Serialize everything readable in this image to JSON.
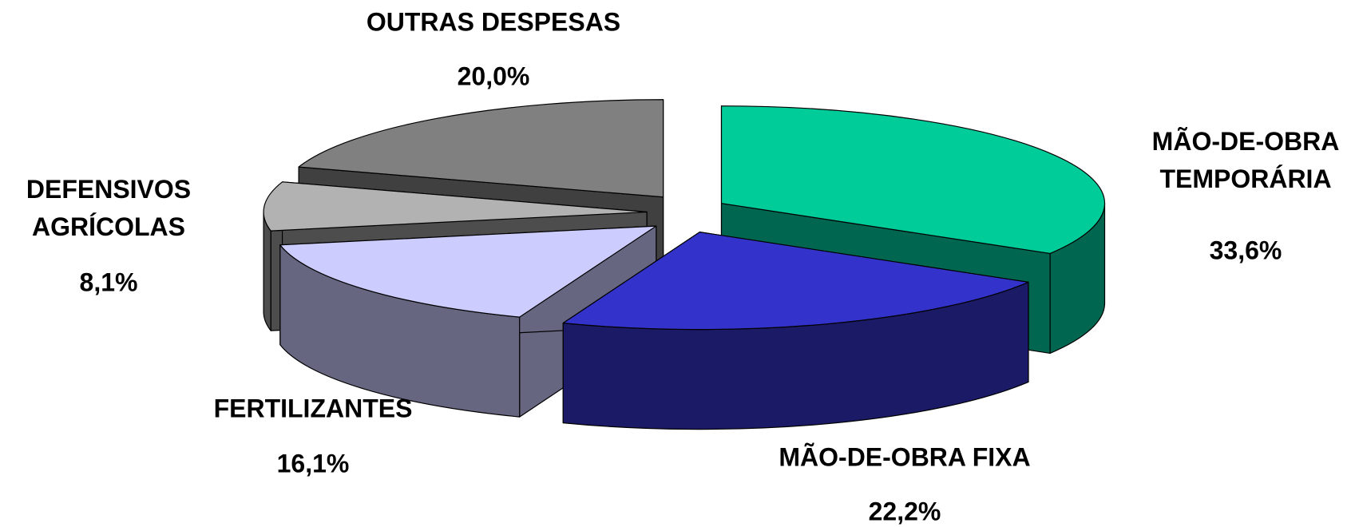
{
  "chart_data": {
    "type": "pie",
    "categories": [
      "MÃO-DE-OBRA TEMPORÁRIA",
      "MÃO-DE-OBRA FIXA",
      "FERTILIZANTES",
      "DEFENSIVOS AGRÍCOLAS",
      "OUTRAS DESPESAS"
    ],
    "values": [
      33.6,
      22.2,
      16.1,
      8.1,
      20.0
    ],
    "value_labels": [
      "33,6%",
      "22,2%",
      "16,1%",
      "8,1%",
      "20,0%"
    ],
    "colors": [
      "#00CC99",
      "#3333CC",
      "#CCCCFF",
      "#B2B2B2",
      "#808080"
    ],
    "side_colors": [
      "#006650",
      "#1A1A66",
      "#666680",
      "#4D4D4D",
      "#404040"
    ]
  }
}
